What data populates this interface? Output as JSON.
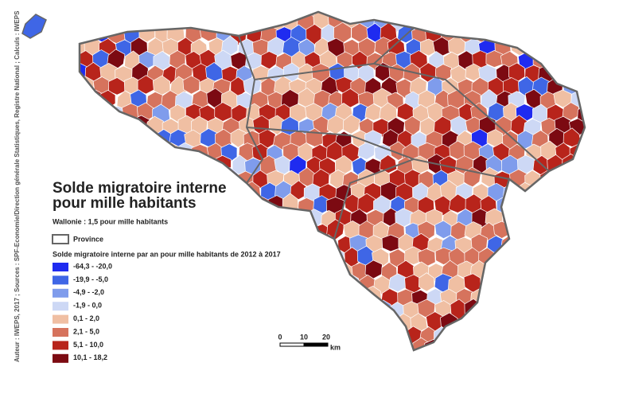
{
  "map": {
    "title": [
      "Solde migratoire interne",
      "pour mille habitants"
    ],
    "subtitle": "Wallonie : 1,5 pour mille habitants",
    "province_label": "Province",
    "legend_title": "Solde migratoire interne par an pour mille habitants de 2012 à 2017",
    "classes": [
      {
        "label": "-64,3 - -20,0",
        "color": "#1f2bf0"
      },
      {
        "label": "-19,9 - -5,0",
        "color": "#3f66e6"
      },
      {
        "label": "-4,9 - -2,0",
        "color": "#7f9cec"
      },
      {
        "label": "-1,9 - 0,0",
        "color": "#cdd8f5"
      },
      {
        "label": "0,1 - 2,0",
        "color": "#f0bfa3"
      },
      {
        "label": "2,1 - 5,0",
        "color": "#d6735d"
      },
      {
        "label": "5,1 - 10,0",
        "color": "#b8241b"
      },
      {
        "label": "10,1 - 18,2",
        "color": "#7c0a12"
      }
    ],
    "scale_labels": [
      "0",
      "10",
      "20"
    ],
    "scale_unit": "km",
    "credits": "Auteur : IWEPS, 2017 ; Sources : SPF-Economie/Direction générale Statistiques, Registre National ; Calculs : IWEPS"
  }
}
